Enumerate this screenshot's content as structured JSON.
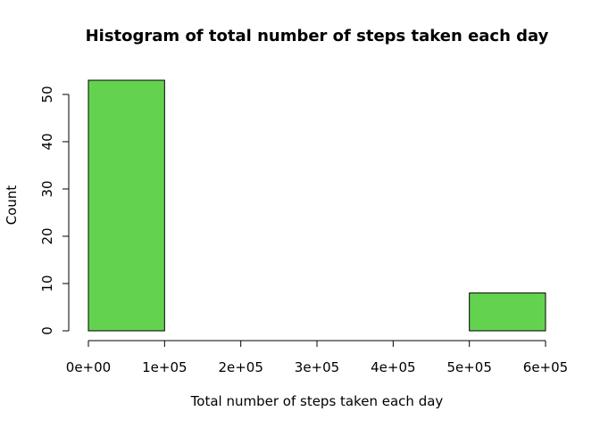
{
  "chart_data": {
    "type": "bar",
    "title": "Histogram of total number of steps taken each day",
    "xlabel": "Total number of steps taken each day",
    "ylabel": "Count",
    "bin_edges": [
      0,
      100000,
      200000,
      300000,
      400000,
      500000,
      600000
    ],
    "values": [
      53,
      0,
      0,
      0,
      0,
      8
    ],
    "xlim": [
      0,
      600000
    ],
    "ylim": [
      0,
      53
    ],
    "x_ticks": [
      0,
      100000,
      200000,
      300000,
      400000,
      500000,
      600000
    ],
    "x_tick_labels": [
      "0e+00",
      "1e+05",
      "2e+05",
      "3e+05",
      "4e+05",
      "5e+05",
      "6e+05"
    ],
    "y_ticks": [
      0,
      10,
      20,
      30,
      40,
      50
    ],
    "y_tick_labels": [
      "0",
      "10",
      "20",
      "30",
      "40",
      "50"
    ],
    "grid": false,
    "bar_color": "#63d34f",
    "edge_color": "#000000"
  }
}
